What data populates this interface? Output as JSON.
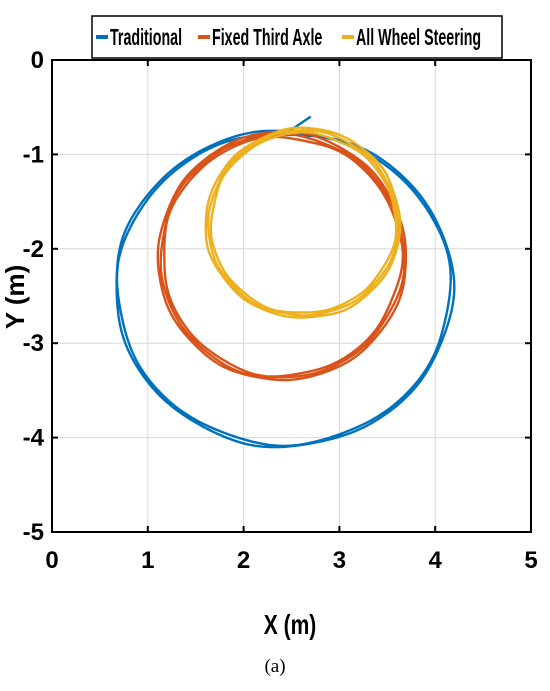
{
  "chart_data": {
    "type": "line",
    "xlabel": "X (m)",
    "ylabel": "Y (m)",
    "xlim": [
      0,
      5
    ],
    "ylim": [
      -5,
      0
    ],
    "xticks": [
      0,
      1,
      2,
      3,
      4,
      5
    ],
    "yticks": [
      0,
      -1,
      -2,
      -3,
      -4,
      -5
    ],
    "grid": true,
    "legend_position": "top",
    "series": [
      {
        "name": "Traditional",
        "color": "#0072BD",
        "shape": "circle",
        "center": [
          2.42,
          -2.42
        ],
        "radius": [
          1.75,
          1.66
        ],
        "x_range": [
          0.67,
          4.17
        ],
        "y_range": [
          -4.08,
          -0.76
        ],
        "laps": 2,
        "start": [
          2.7,
          -0.6
        ]
      },
      {
        "name": "Fixed Third Axle",
        "color": "#D95319",
        "shape": "circle",
        "center": [
          2.4,
          -2.08
        ],
        "radius": [
          1.27,
          1.29
        ],
        "x_range": [
          1.13,
          3.67
        ],
        "y_range": [
          -3.37,
          -0.79
        ],
        "laps": 3
      },
      {
        "name": "All Wheel Steering",
        "color": "#EDB120",
        "shape": "circle",
        "center": [
          2.62,
          -1.73
        ],
        "radius": [
          0.99,
          0.98
        ],
        "x_range": [
          1.63,
          3.61
        ],
        "y_range": [
          -2.71,
          -0.75
        ],
        "laps": 3
      }
    ]
  },
  "caption": "(a)"
}
